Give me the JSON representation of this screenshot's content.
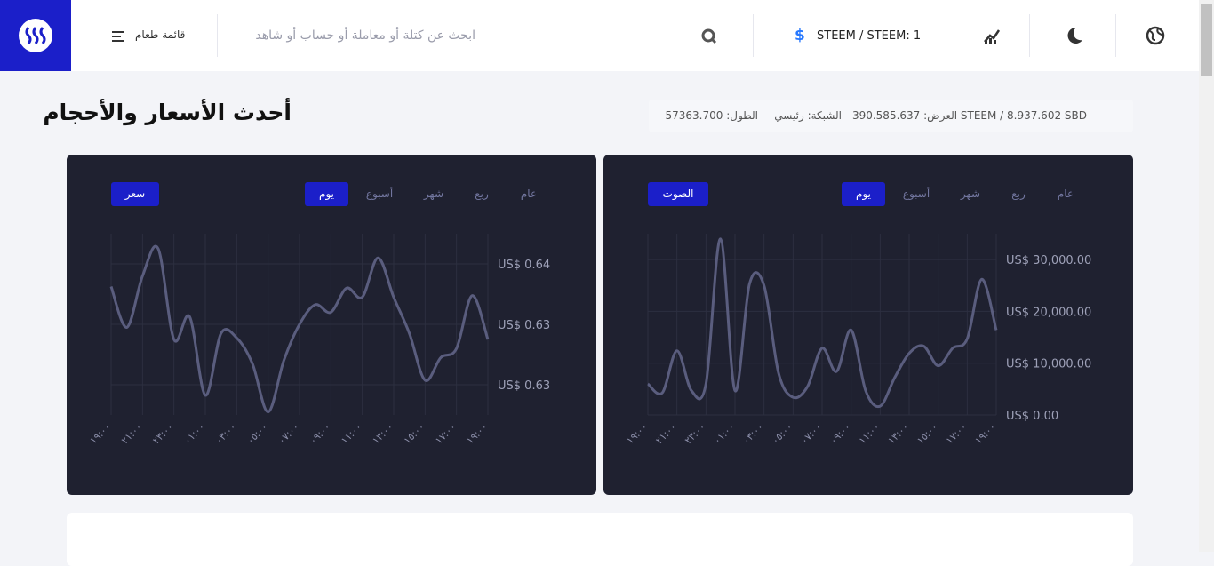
{
  "header": {
    "menu_label": "قائمة طعام",
    "search_placeholder": "ابحث عن كتلة أو معاملة أو حساب أو شاهد",
    "price_pair": "STEEM / STEEM: 1"
  },
  "page": {
    "title": "أحدث الأسعار والأحجام",
    "info": {
      "height": "الطول: 57363.700",
      "network": "الشبكة: رئيسي",
      "supply": "العرض: 390.585.637 STEEM / 8.937.602 SBD"
    }
  },
  "price_chart": {
    "type": "line",
    "button": "سعر",
    "tabs": [
      "عام",
      "ربع",
      "شهر",
      "أسبوع",
      "يوم"
    ],
    "active_tab": 4,
    "color": "#5a5d7e",
    "grid": true,
    "categories": [
      "١٩:٠٠",
      null,
      "٢١:٠٠",
      null,
      "٢٣:٠٠",
      null,
      "٠١:٠٠",
      null,
      "٠٣:٠٠",
      null,
      "٠٥:٠٠",
      null,
      "٠٧:٠٠",
      null,
      "٠٩:٠٠",
      null,
      "١١:٠٠",
      null,
      "١٣:٠٠",
      null,
      "١٥:٠٠",
      null,
      "١٧:٠٠",
      null,
      "١٩:٠٠"
    ],
    "values": [
      0.6365,
      0.6338,
      0.6372,
      0.639,
      0.633,
      0.6345,
      0.6293,
      0.6334,
      0.6331,
      0.6314,
      0.6282,
      0.6316,
      0.634,
      0.6353,
      0.6348,
      0.6364,
      0.6358,
      0.6384,
      0.6358,
      0.6334,
      0.6303,
      0.6318,
      0.6324,
      0.6359,
      0.633
    ],
    "ylim": [
      0.628,
      0.64
    ],
    "yticks": [
      {
        "value": 0.638,
        "label": "US$ 0.64"
      },
      {
        "value": 0.634,
        "label": "US$ 0.63"
      },
      {
        "value": 0.63,
        "label": "US$ 0.63"
      }
    ]
  },
  "volume_chart": {
    "type": "line",
    "button": "الصوت",
    "tabs": [
      "عام",
      "ربع",
      "شهر",
      "أسبوع",
      "يوم"
    ],
    "active_tab": 4,
    "color": "#5a5d7e",
    "grid": true,
    "categories": [
      "١٩:٠٠",
      null,
      "٢١:٠٠",
      null,
      "٢٣:٠٠",
      null,
      "٠١:٠٠",
      null,
      "٠٣:٠٠",
      null,
      "٠٥:٠٠",
      null,
      "٠٧:٠٠",
      null,
      "٠٩:٠٠",
      null,
      "١١:٠٠",
      null,
      "١٣:٠٠",
      null,
      "١٥:٠٠",
      null,
      "١٧:٠٠",
      null,
      "١٩:٠٠"
    ],
    "values": [
      6000,
      4300,
      12400,
      4700,
      6000,
      34000,
      4700,
      25300,
      25000,
      8100,
      3400,
      5500,
      12900,
      8400,
      16400,
      4700,
      1700,
      7200,
      11900,
      13300,
      9500,
      12900,
      14700,
      26200,
      16400
    ],
    "ylim": [
      0,
      35000
    ],
    "yticks": [
      {
        "value": 30000,
        "label": "US$ 30,000.00"
      },
      {
        "value": 20000,
        "label": "US$ 20,000.00"
      },
      {
        "value": 10000,
        "label": "US$ 10,000.00"
      },
      {
        "value": 0,
        "label": "US$ 0.00"
      }
    ]
  }
}
